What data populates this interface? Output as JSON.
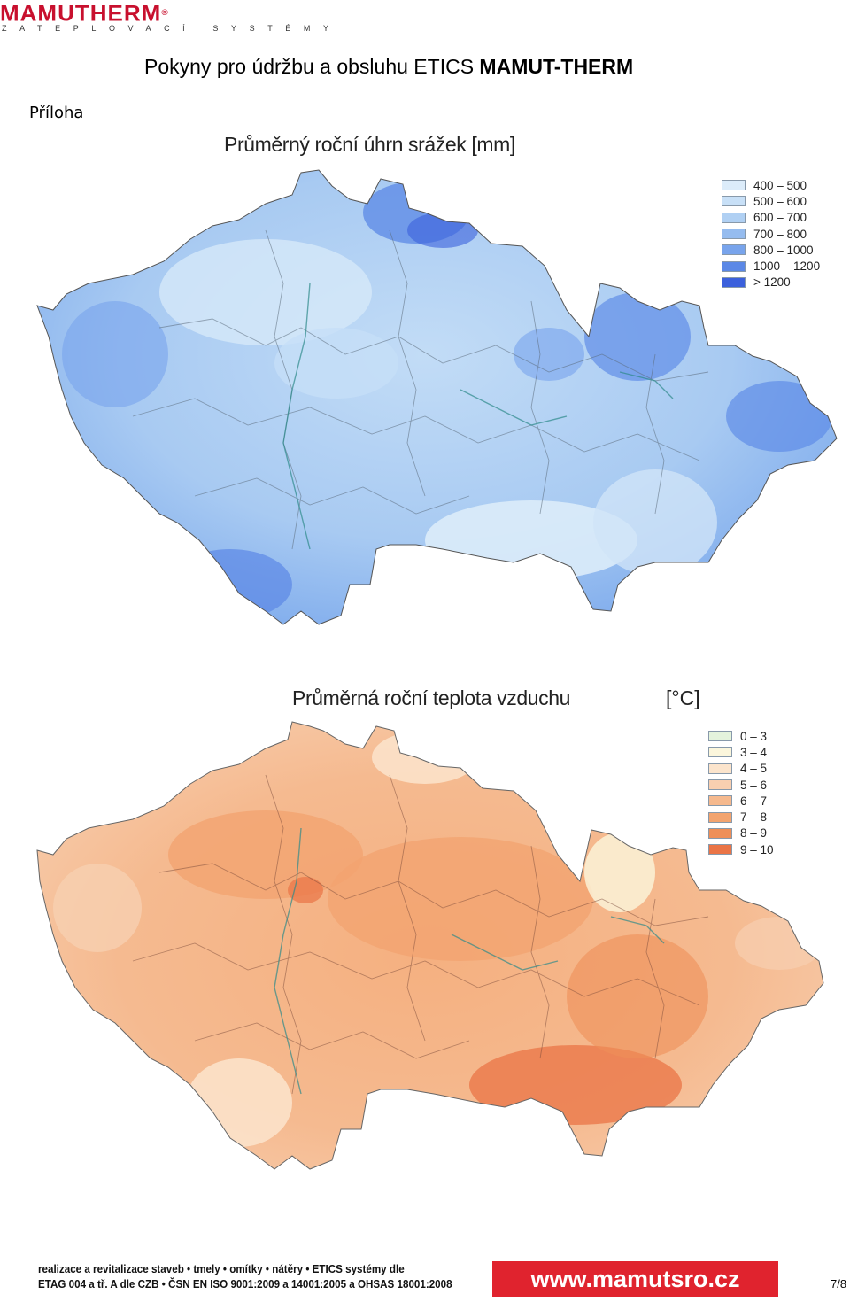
{
  "header": {
    "logo_text": "MAMUTHERM",
    "logo_reg": "®",
    "logo_tagline": "ZATEPLOVACÍ SYSTÉMY",
    "title_regular": "Pokyny pro údržbu a obsluhu ETICS ",
    "title_bold": "MAMUT-THERM",
    "section": "Příloha"
  },
  "precipitation_map": {
    "title": "Průměrný roční úhrn srážek [mm]",
    "legend": [
      {
        "label": "400 – 500",
        "color": "#dcecfa"
      },
      {
        "label": "500 – 600",
        "color": "#c8e0f7"
      },
      {
        "label": "600 – 700",
        "color": "#b0d0f3"
      },
      {
        "label": "700 – 800",
        "color": "#95bcef"
      },
      {
        "label": "800 – 1000",
        "color": "#78a4ec"
      },
      {
        "label": "1000 – 1200",
        "color": "#5b88e6"
      },
      {
        "label": "> 1200",
        "color": "#3b60dc"
      }
    ]
  },
  "temperature_map": {
    "title": "Průměrná roční teplota vzduchu",
    "unit": "[°C]",
    "legend": [
      {
        "label": "0 – 3",
        "color": "#e4f3dc"
      },
      {
        "label": "3 – 4",
        "color": "#fbf6dc"
      },
      {
        "label": "4 – 5",
        "color": "#fbe4cc"
      },
      {
        "label": "5 – 6",
        "color": "#f8cfb0"
      },
      {
        "label": "6 – 7",
        "color": "#f5b98e"
      },
      {
        "label": "7 – 8",
        "color": "#f2a470"
      },
      {
        "label": "8 – 9",
        "color": "#ee8f58"
      },
      {
        "label": "9 – 10",
        "color": "#ea7446"
      }
    ]
  },
  "footer": {
    "line1": "realizace a revitalizace staveb • tmely • omítky • nátěry • ETICS systémy dle",
    "line2": "ETAG 004 a tř. A dle CZB • ČSN EN ISO 9001:2009 a 14001:2005 a OHSAS 18001:2008",
    "website": "www.mamutsro.cz",
    "page": "7/8"
  }
}
